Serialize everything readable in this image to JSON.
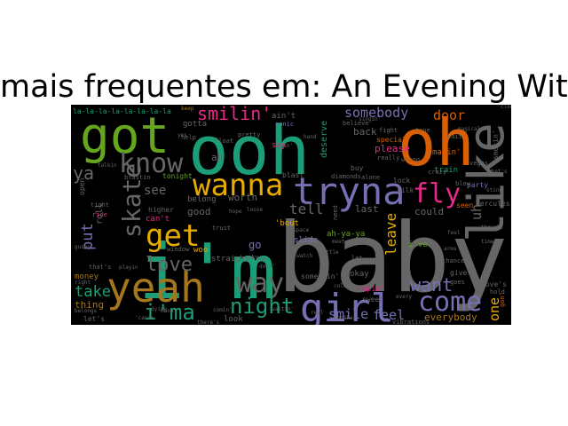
{
  "title": "mais frequentes em: An Evening With",
  "background": "#000000",
  "words": [
    {
      "text": "i'm",
      "color": "#1b9e77"
    },
    {
      "text": "baby",
      "color": "#666666"
    },
    {
      "text": "ooh",
      "color": "#1b9e77"
    },
    {
      "text": "oh",
      "color": "#d95f02"
    },
    {
      "text": "got",
      "color": "#66a61e"
    },
    {
      "text": "yeah",
      "color": "#a6761d"
    },
    {
      "text": "like",
      "color": "#666666"
    },
    {
      "text": "tryna",
      "color": "#7570b3"
    },
    {
      "text": "girl",
      "color": "#7570b3"
    },
    {
      "text": "wanna",
      "color": "#e6ab02"
    },
    {
      "text": "know",
      "color": "#666666"
    },
    {
      "text": "get",
      "color": "#e6ab02"
    },
    {
      "text": "fly",
      "color": "#e7298a"
    },
    {
      "text": "way",
      "color": "#666666"
    },
    {
      "text": "come",
      "color": "#7570b3"
    },
    {
      "text": "skate",
      "color": "#666666"
    },
    {
      "text": "love",
      "color": "#666666"
    },
    {
      "text": "night",
      "color": "#1b9e77"
    },
    {
      "text": "i'ma",
      "color": "#1b9e77"
    },
    {
      "text": "want",
      "color": "#7570b3"
    },
    {
      "text": "smilin'",
      "color": "#e7298a"
    },
    {
      "text": "somebody",
      "color": "#7570b3"
    },
    {
      "text": "door",
      "color": "#d95f02"
    },
    {
      "text": "take",
      "color": "#1b9e77"
    },
    {
      "text": "put",
      "color": "#7570b3"
    },
    {
      "text": "tell",
      "color": "#666666"
    },
    {
      "text": "smile",
      "color": "#7570b3"
    },
    {
      "text": "feel",
      "color": "#7570b3"
    },
    {
      "text": "leave",
      "color": "#e6ab02"
    },
    {
      "text": "one",
      "color": "#e6ab02"
    },
    {
      "text": "ya",
      "color": "#666666"
    },
    {
      "text": "see",
      "color": "#666666"
    },
    {
      "text": "uh",
      "color": "#666666"
    },
    {
      "text": "could",
      "color": "#666666"
    },
    {
      "text": "last",
      "color": "#666666"
    },
    {
      "text": "ain't",
      "color": "#666666"
    },
    {
      "text": "everybody",
      "color": "#a6761d"
    },
    {
      "text": "thing",
      "color": "#a6761d"
    },
    {
      "text": "money",
      "color": "#a6761d"
    },
    {
      "text": "good",
      "color": "#666666"
    },
    {
      "text": "worth",
      "color": "#666666"
    },
    {
      "text": "belong",
      "color": "#666666"
    },
    {
      "text": "tonight",
      "color": "#66a61e"
    },
    {
      "text": "higher",
      "color": "#666666"
    },
    {
      "text": "can't",
      "color": "#e7298a"
    },
    {
      "text": "straight",
      "color": "#666666"
    },
    {
      "text": "look",
      "color": "#666666"
    },
    {
      "text": "'bout",
      "color": "#e6ab02"
    },
    {
      "text": "i've",
      "color": "#66a61e"
    },
    {
      "text": "okay",
      "color": "#666666"
    },
    {
      "text": "ah-ya-ya",
      "color": "#66a61e"
    },
    {
      "text": "slide",
      "color": "#7570b3"
    },
    {
      "text": "somethin'",
      "color": "#666666"
    },
    {
      "text": "hopin'",
      "color": "#e7298a"
    },
    {
      "text": "sweet",
      "color": "#666666"
    },
    {
      "text": "give",
      "color": "#666666"
    },
    {
      "text": "love's",
      "color": "#666666"
    },
    {
      "text": "seen",
      "color": "#d95f02"
    },
    {
      "text": "lock",
      "color": "#666666"
    },
    {
      "text": "silk",
      "color": "#666666"
    },
    {
      "text": "deserve",
      "color": "#1b9e77"
    },
    {
      "text": "blast",
      "color": "#666666"
    },
    {
      "text": "diamonds",
      "color": "#666666"
    },
    {
      "text": "alone",
      "color": "#666666"
    },
    {
      "text": "please",
      "color": "#e7298a"
    },
    {
      "text": "back",
      "color": "#666666"
    },
    {
      "text": "buy",
      "color": "#666666"
    },
    {
      "text": "train",
      "color": "#1b9e77"
    },
    {
      "text": "makin'",
      "color": "#d95f02"
    },
    {
      "text": "gotta",
      "color": "#666666"
    },
    {
      "text": "ah",
      "color": "#666666"
    },
    {
      "text": "blastin",
      "color": "#666666"
    },
    {
      "text": "sonic",
      "color": "#7570b3"
    },
    {
      "text": "believe",
      "color": "#666666"
    },
    {
      "text": "pretty",
      "color": "#666666"
    },
    {
      "text": "say",
      "color": "#e7298a"
    },
    {
      "text": "go",
      "color": "#7570b3"
    },
    {
      "text": "trust",
      "color": "#666666"
    },
    {
      "text": "window",
      "color": "#666666"
    },
    {
      "text": "woo",
      "color": "#e6ab02"
    },
    {
      "text": "roll",
      "color": "#666666"
    },
    {
      "text": "ride",
      "color": "#e7298a"
    },
    {
      "text": "open",
      "color": "#666666"
    },
    {
      "text": "tight",
      "color": "#666666"
    },
    {
      "text": "help",
      "color": "#666666"
    },
    {
      "text": "that's",
      "color": "#666666"
    },
    {
      "text": "playin",
      "color": "#666666"
    },
    {
      "text": "let's",
      "color": "#666666"
    },
    {
      "text": "comin'",
      "color": "#666666"
    },
    {
      "text": "waitin'",
      "color": "#666666"
    },
    {
      "text": "doin'",
      "color": "#666666"
    },
    {
      "text": "let",
      "color": "#666666"
    },
    {
      "text": "every",
      "color": "#666666"
    },
    {
      "text": "chance",
      "color": "#666666"
    },
    {
      "text": "goes",
      "color": "#666666"
    },
    {
      "text": "hold",
      "color": "#666666"
    },
    {
      "text": "crazy",
      "color": "#666666"
    },
    {
      "text": "wrong",
      "color": "#666666"
    },
    {
      "text": "wait",
      "color": "#666666"
    },
    {
      "text": "blow",
      "color": "#666666"
    },
    {
      "text": "party",
      "color": "#7570b3"
    },
    {
      "text": "vegas",
      "color": "#666666"
    },
    {
      "text": "hercules",
      "color": "#666666"
    },
    {
      "text": "smokin'",
      "color": "#666666"
    },
    {
      "text": "true",
      "color": "#666666"
    },
    {
      "text": "fight",
      "color": "#666666"
    },
    {
      "text": "special",
      "color": "#d95f02"
    },
    {
      "text": "really",
      "color": "#666666"
    },
    {
      "text": "magical",
      "color": "#666666"
    },
    {
      "text": "singin'",
      "color": "#666666"
    },
    {
      "text": "keep",
      "color": "#a6761d"
    },
    {
      "text": "goin'",
      "color": "#666666"
    },
    {
      "text": "float",
      "color": "#666666"
    },
    {
      "text": "sky",
      "color": "#666666"
    },
    {
      "text": "bring",
      "color": "#666666"
    },
    {
      "text": "cold",
      "color": "#666666"
    },
    {
      "text": "gon'",
      "color": "#d95f02"
    },
    {
      "text": "thought",
      "color": "#666666"
    },
    {
      "text": "time",
      "color": "#666666"
    },
    {
      "text": "space",
      "color": "#666666"
    },
    {
      "text": "watch",
      "color": "#666666"
    },
    {
      "text": "little",
      "color": "#666666"
    },
    {
      "text": "meet",
      "color": "#666666"
    },
    {
      "text": "real",
      "color": "#666666"
    },
    {
      "text": "another",
      "color": "#666666"
    },
    {
      "text": "vibrations",
      "color": "#666666"
    },
    {
      "text": "'cause",
      "color": "#666666"
    },
    {
      "text": "dying",
      "color": "#666666"
    },
    {
      "text": "right",
      "color": "#666666"
    },
    {
      "text": "gushy",
      "color": "#666666"
    },
    {
      "text": "belongs",
      "color": "#666666"
    },
    {
      "text": "there's",
      "color": "#666666"
    },
    {
      "text": "moon",
      "color": "#666666"
    },
    {
      "text": "hope",
      "color": "#666666"
    },
    {
      "text": "loose",
      "color": "#666666"
    },
    {
      "text": "need",
      "color": "#666666"
    },
    {
      "text": "ay",
      "color": "#666666"
    },
    {
      "text": "feel",
      "color": "#666666"
    },
    {
      "text": "arms",
      "color": "#666666"
    },
    {
      "text": "sting",
      "color": "#666666"
    },
    {
      "text": "clocks",
      "color": "#666666"
    },
    {
      "text": "what's",
      "color": "#666666"
    },
    {
      "text": "hand",
      "color": "#666666"
    },
    {
      "text": "yes",
      "color": "#666666"
    },
    {
      "text": "talkin",
      "color": "#666666"
    },
    {
      "text": "la-la-la-la-la-la-la-la",
      "color": "#1b9e77"
    }
  ]
}
